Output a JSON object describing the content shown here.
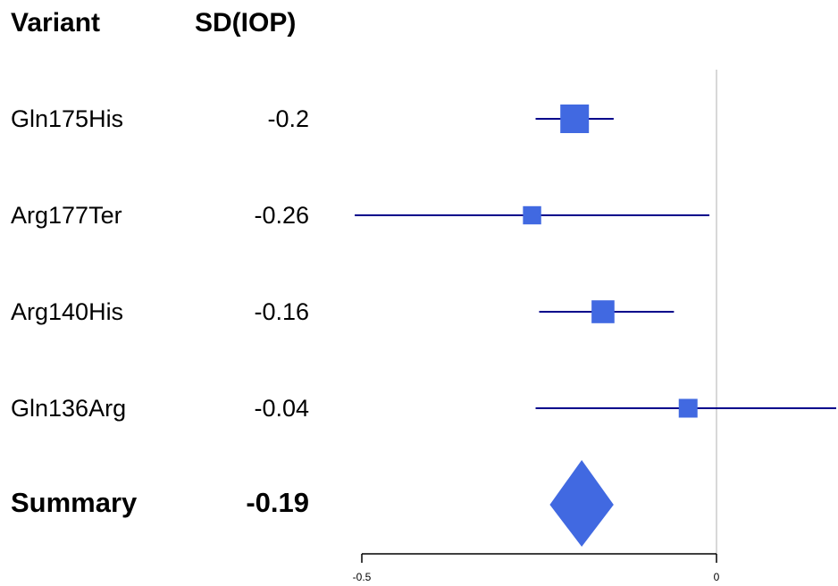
{
  "headers": {
    "variant": "Variant",
    "value": "SD(IOP)"
  },
  "chart_data": {
    "type": "forest",
    "title": "",
    "xlabel": "",
    "ylabel": "",
    "xlim": [
      -0.5,
      0.17
    ],
    "x_ticks": [
      -0.5,
      0
    ],
    "x_tick_labels": [
      "-0.5",
      "0"
    ],
    "reference_line": 0,
    "grid": false,
    "rows": [
      {
        "variant": "Gln175His",
        "label": "-0.2",
        "estimate": -0.2,
        "ci": [
          -0.255,
          -0.145
        ],
        "weight": 1.0
      },
      {
        "variant": "Arg177Ter",
        "label": "-0.26",
        "estimate": -0.26,
        "ci": [
          -0.51,
          -0.01
        ],
        "weight": 0.42
      },
      {
        "variant": "Arg140His",
        "label": "-0.16",
        "estimate": -0.16,
        "ci": [
          -0.25,
          -0.06
        ],
        "weight": 0.68
      },
      {
        "variant": "Gln136Arg",
        "label": "-0.04",
        "estimate": -0.04,
        "ci": [
          -0.255,
          0.17
        ],
        "weight": 0.45
      }
    ],
    "summary": {
      "variant": "Summary",
      "label": "-0.19",
      "estimate": -0.19,
      "ci": [
        -0.235,
        -0.145
      ]
    },
    "colors": {
      "marker": "#4169e1",
      "ci_line": "#00008b",
      "axis": "#000000",
      "reference": "#cccccc"
    }
  }
}
